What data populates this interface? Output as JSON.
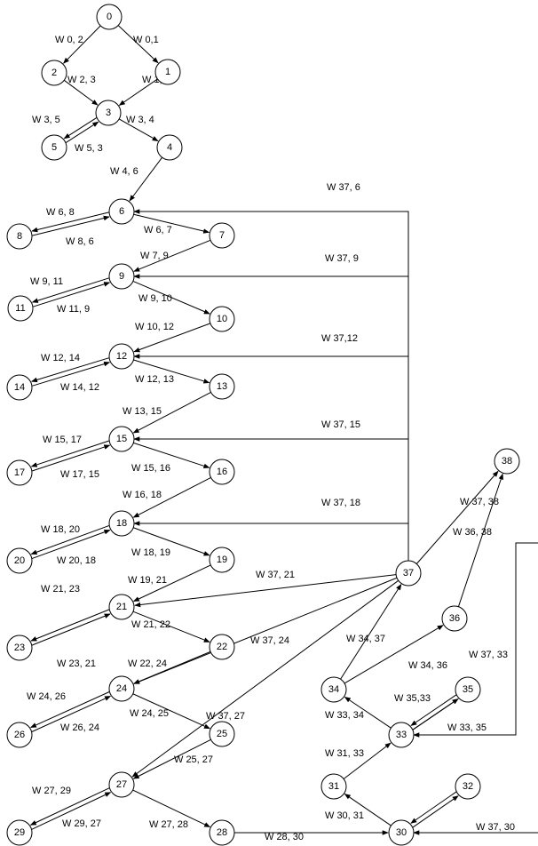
{
  "nodes": [
    "0",
    "1",
    "2",
    "3",
    "4",
    "5",
    "6",
    "7",
    "8",
    "9",
    "10",
    "11",
    "12",
    "13",
    "14",
    "15",
    "16",
    "17",
    "18",
    "19",
    "20",
    "21",
    "22",
    "23",
    "24",
    "25",
    "26",
    "27",
    "28",
    "29",
    "30",
    "31",
    "32",
    "33",
    "34",
    "35",
    "36",
    "37",
    "38"
  ],
  "edges": [
    {
      "from": "0",
      "to": "2",
      "label": "W 0, 2"
    },
    {
      "from": "0",
      "to": "1",
      "label": "W 0,1"
    },
    {
      "from": "2",
      "to": "3",
      "label": "W 2, 3"
    },
    {
      "from": "1",
      "to": "3",
      "label": "W 1, 3"
    },
    {
      "from": "3",
      "to": "5",
      "label": "W 3, 5"
    },
    {
      "from": "5",
      "to": "3",
      "label": "W 5, 3"
    },
    {
      "from": "3",
      "to": "4",
      "label": "W 3, 4"
    },
    {
      "from": "4",
      "to": "6",
      "label": "W 4, 6"
    },
    {
      "from": "6",
      "to": "8",
      "label": "W 6, 8"
    },
    {
      "from": "8",
      "to": "6",
      "label": "W 8, 6"
    },
    {
      "from": "6",
      "to": "7",
      "label": "W 6, 7"
    },
    {
      "from": "7",
      "to": "9",
      "label": "W 7, 9"
    },
    {
      "from": "9",
      "to": "11",
      "label": "W 9, 11"
    },
    {
      "from": "11",
      "to": "9",
      "label": "W 11, 9"
    },
    {
      "from": "9",
      "to": "10",
      "label": "W 9, 10"
    },
    {
      "from": "10",
      "to": "12",
      "label": "W 10, 12"
    },
    {
      "from": "12",
      "to": "14",
      "label": "W 12, 14"
    },
    {
      "from": "14",
      "to": "12",
      "label": "W 14, 12"
    },
    {
      "from": "12",
      "to": "13",
      "label": "W 12, 13"
    },
    {
      "from": "13",
      "to": "15",
      "label": "W 13, 15"
    },
    {
      "from": "15",
      "to": "17",
      "label": "W 15, 17"
    },
    {
      "from": "17",
      "to": "15",
      "label": "W 17, 15"
    },
    {
      "from": "15",
      "to": "16",
      "label": "W 15, 16"
    },
    {
      "from": "16",
      "to": "18",
      "label": "W 16, 18"
    },
    {
      "from": "18",
      "to": "20",
      "label": "W 18, 20"
    },
    {
      "from": "20",
      "to": "18",
      "label": "W 20, 18"
    },
    {
      "from": "18",
      "to": "19",
      "label": "W 18, 19"
    },
    {
      "from": "19",
      "to": "21",
      "label": "W 19, 21"
    },
    {
      "from": "21",
      "to": "23",
      "label": "W 21, 23"
    },
    {
      "from": "23",
      "to": "21",
      "label": "W 23, 21"
    },
    {
      "from": "21",
      "to": "22",
      "label": "W 21, 22"
    },
    {
      "from": "22",
      "to": "24",
      "label": "W 22, 24"
    },
    {
      "from": "24",
      "to": "26",
      "label": "W 24, 26"
    },
    {
      "from": "26",
      "to": "24",
      "label": "W 26, 24"
    },
    {
      "from": "24",
      "to": "25",
      "label": "W 24, 25"
    },
    {
      "from": "25",
      "to": "27",
      "label": "W 25, 27"
    },
    {
      "from": "27",
      "to": "29",
      "label": "W 27, 29"
    },
    {
      "from": "29",
      "to": "27",
      "label": "W 29, 27"
    },
    {
      "from": "27",
      "to": "28",
      "label": "W 27, 28"
    },
    {
      "from": "28",
      "to": "30",
      "label": "W 28, 30"
    },
    {
      "from": "30",
      "to": "31",
      "label": "W 30, 31"
    },
    {
      "from": "30",
      "to": "32",
      "label": ""
    },
    {
      "from": "32",
      "to": "30",
      "label": ""
    },
    {
      "from": "31",
      "to": "33",
      "label": "W 31, 33"
    },
    {
      "from": "33",
      "to": "34",
      "label": "W 33, 34"
    },
    {
      "from": "33",
      "to": "35",
      "label": ""
    },
    {
      "from": "35",
      "to": "33",
      "label": "W 35,33"
    },
    {
      "from": "34",
      "to": "37",
      "label": "W 34, 37"
    },
    {
      "from": "34",
      "to": "36",
      "label": "W 34, 36"
    },
    {
      "from": "36",
      "to": "38",
      "label": "W 36, 38"
    },
    {
      "from": "37",
      "to": "38",
      "label": "W 37, 38"
    },
    {
      "from": "37",
      "to": "6",
      "label": "W 37, 6"
    },
    {
      "from": "37",
      "to": "9",
      "label": "W 37, 9"
    },
    {
      "from": "37",
      "to": "12",
      "label": "W 37,12"
    },
    {
      "from": "37",
      "to": "15",
      "label": "W 37, 15"
    },
    {
      "from": "37",
      "to": "18",
      "label": "W 37, 18"
    },
    {
      "from": "37",
      "to": "21",
      "label": "W 37, 21"
    },
    {
      "from": "37",
      "to": "24",
      "label": "W 37, 24"
    },
    {
      "from": "37",
      "to": "27",
      "label": "W 37, 27"
    },
    {
      "from": "37",
      "to": "33",
      "label": "W 37, 33"
    },
    {
      "from": "37",
      "to": "30",
      "label": "W 37, 30"
    },
    {
      "from": "33",
      "to": "35",
      "label": "W 33, 35"
    }
  ]
}
